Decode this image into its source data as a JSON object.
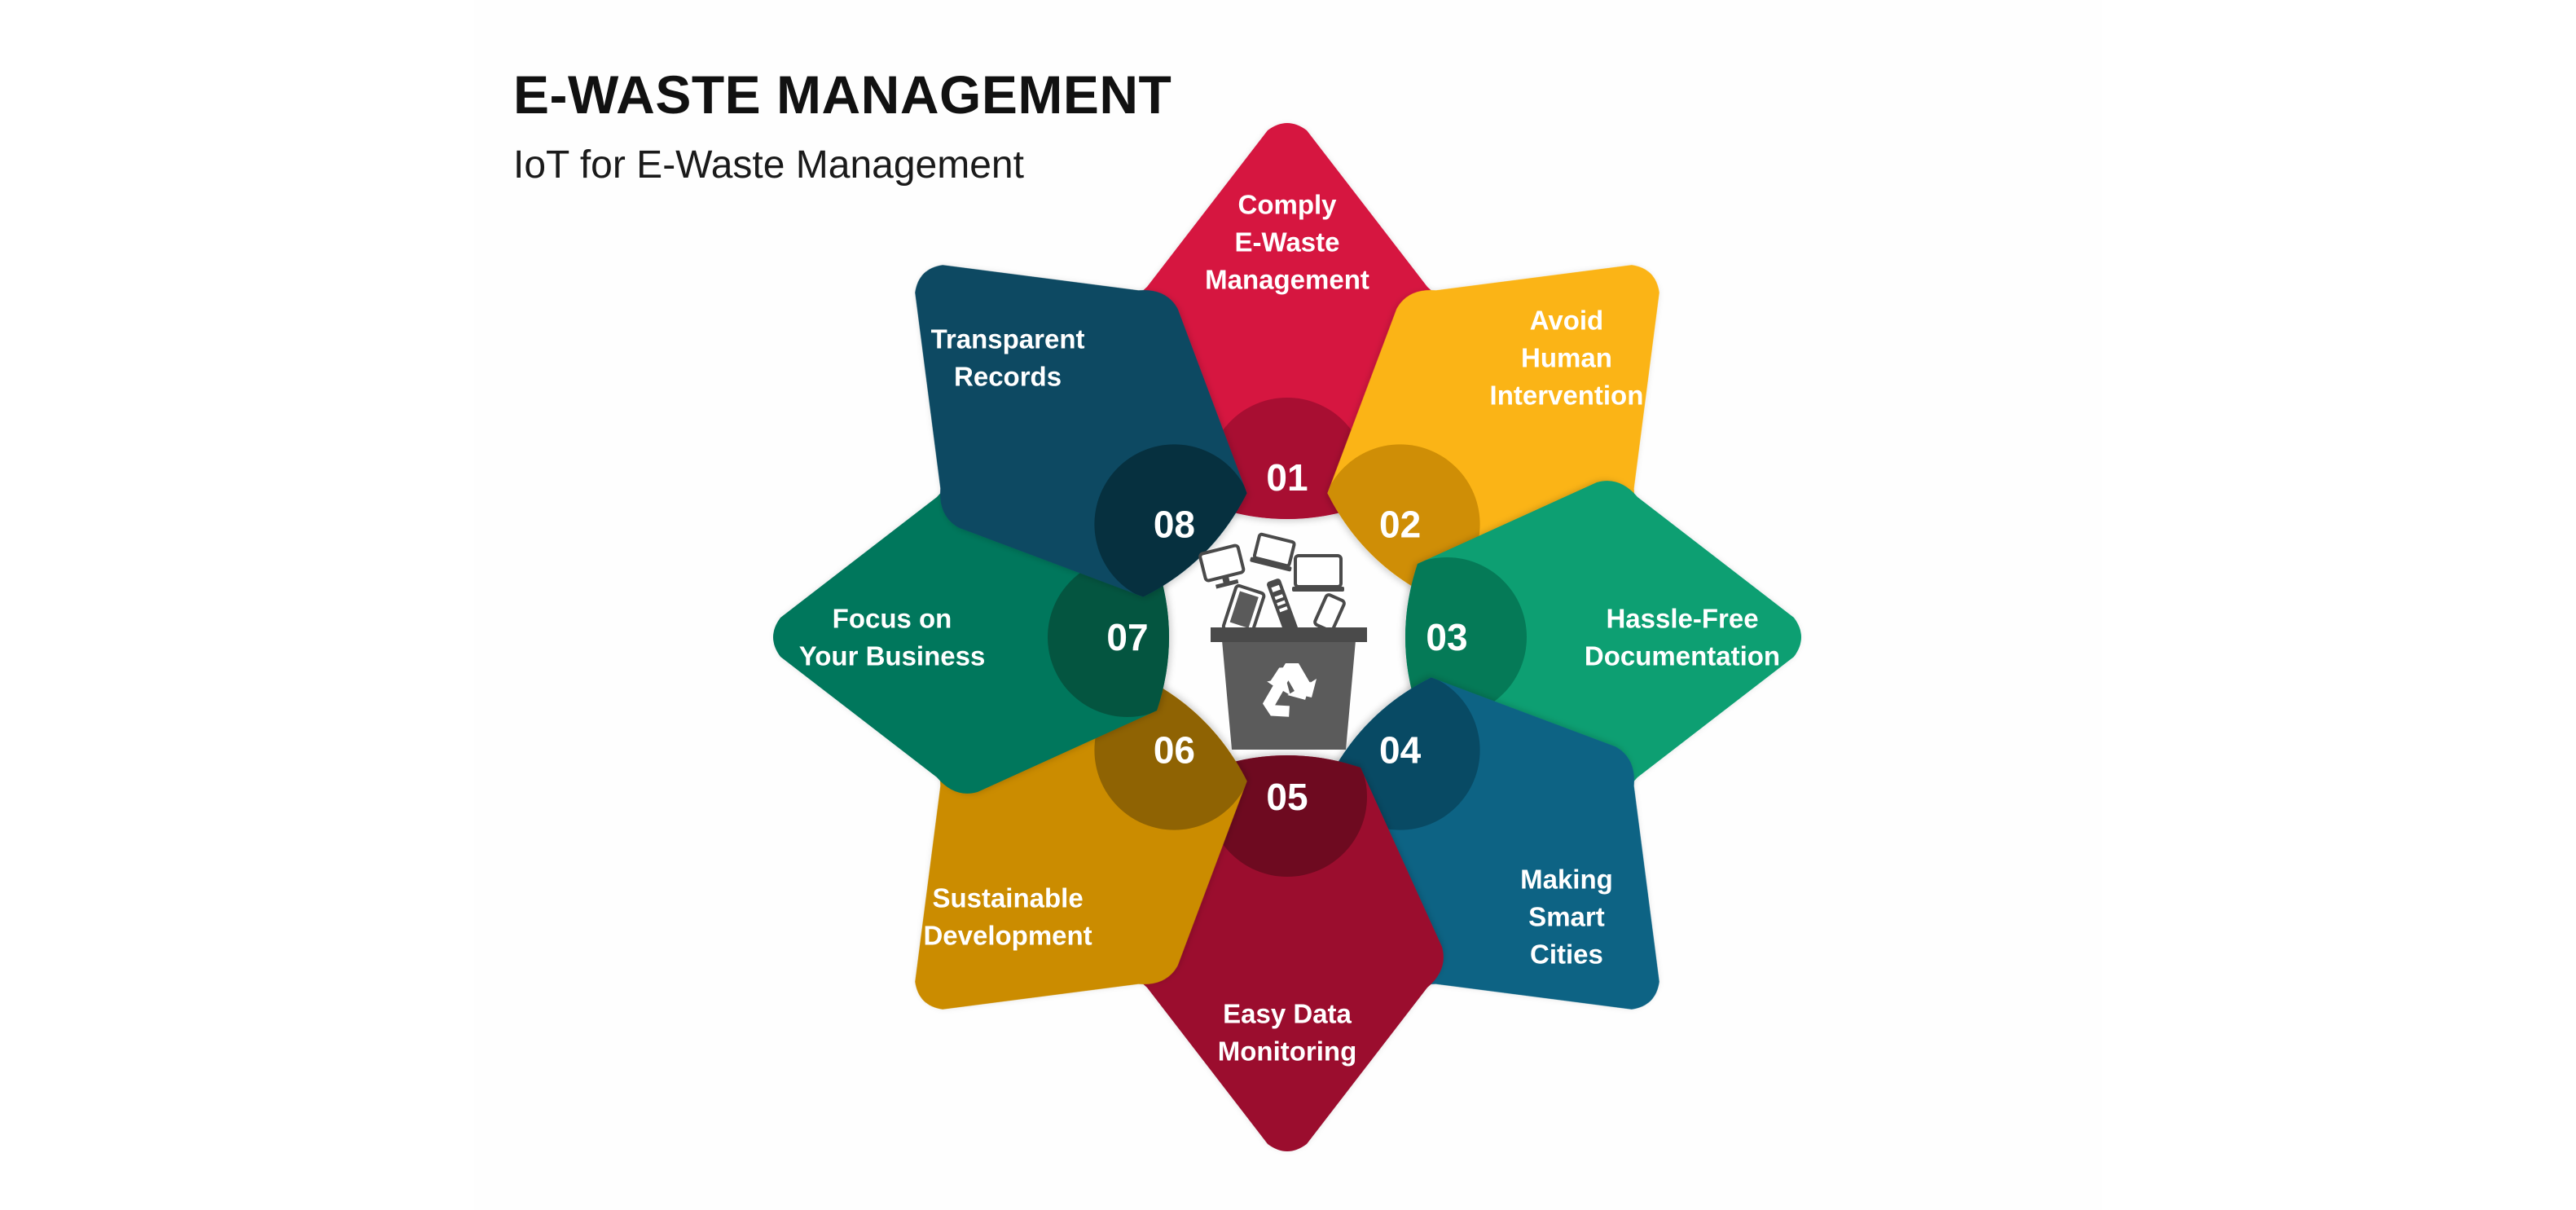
{
  "title": "E-WASTE MANAGEMENT",
  "subtitle": "IoT for E-Waste Management",
  "center_icon": "recycle-bin-electronics-icon",
  "steps": [
    {
      "number": "01",
      "lines": [
        "Comply",
        "E-Waste",
        "Management"
      ],
      "color": "#D6143F",
      "badge_color": "#A80E32"
    },
    {
      "number": "02",
      "lines": [
        "Avoid",
        "Human",
        "Intervention"
      ],
      "color": "#FBB414",
      "badge_color": "#CF8E06"
    },
    {
      "number": "03",
      "lines": [
        "Hassle-Free",
        "Documentation"
      ],
      "color": "#079F72",
      "badge_color": "#057A57"
    },
    {
      "number": "04",
      "lines": [
        "Making",
        "Smart",
        "Cities"
      ],
      "color": "#0E6384",
      "badge_color": "#084A64"
    },
    {
      "number": "05",
      "lines": [
        "Easy Data",
        "Monitoring"
      ],
      "color": "#9B0F2E",
      "badge_color": "#6E0A20"
    },
    {
      "number": "06",
      "lines": [
        "Sustainable",
        "Development"
      ],
      "color": "#CB8C05",
      "badge_color": "#8F6303"
    },
    {
      "number": "07",
      "lines": [
        "Focus on",
        "Your Business"
      ],
      "color": "#06775B",
      "badge_color": "#045540"
    },
    {
      "number": "08",
      "lines": [
        "Transparent",
        "Records"
      ],
      "color": "#0C4A62",
      "badge_color": "#06303F"
    }
  ]
}
